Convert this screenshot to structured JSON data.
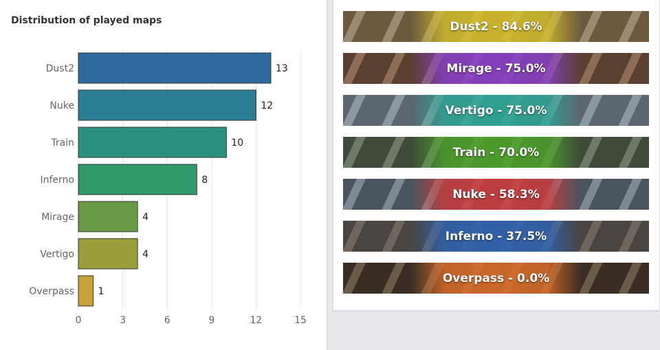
{
  "chart_title": "Distribution of played maps",
  "chart_data": {
    "type": "bar",
    "orientation": "horizontal",
    "title": "Distribution of played maps",
    "categories": [
      "Dust2",
      "Nuke",
      "Train",
      "Inferno",
      "Mirage",
      "Vertigo",
      "Overpass"
    ],
    "values": [
      13,
      12,
      10,
      8,
      4,
      4,
      1
    ],
    "bar_colors": [
      "#2f69a0",
      "#2b7d94",
      "#2c907f",
      "#2f9a6a",
      "#6a9a46",
      "#9a9e38",
      "#c8a236"
    ],
    "xlim": [
      0,
      15
    ],
    "xticks": [
      "0",
      "3",
      "6",
      "9",
      "12",
      "15"
    ],
    "grid": true
  },
  "map_winrates": [
    {
      "label": "Dust2 - 84.6%",
      "color": "#d7c02a",
      "bg_dark": "#6b5a3e",
      "bg_light": "#9a8a70"
    },
    {
      "label": "Mirage - 75.0%",
      "color": "#8a3fd1",
      "bg_dark": "#5a4030",
      "bg_light": "#8d6d55"
    },
    {
      "label": "Vertigo - 75.0%",
      "color": "#2aa797",
      "bg_dark": "#5c6670",
      "bg_light": "#8c98a0"
    },
    {
      "label": "Train - 70.0%",
      "color": "#4ea62a",
      "bg_dark": "#3e4a3a",
      "bg_light": "#6d7a66"
    },
    {
      "label": "Nuke - 58.3%",
      "color": "#d03a3a",
      "bg_dark": "#4a5560",
      "bg_light": "#7d8a95"
    },
    {
      "label": "Inferno - 37.5%",
      "color": "#2d64b8",
      "bg_dark": "#4a4540",
      "bg_light": "#6e655c"
    },
    {
      "label": "Overpass - 0.0%",
      "color": "#e0702a",
      "bg_dark": "#3a2e24",
      "bg_light": "#6a5a48"
    }
  ]
}
